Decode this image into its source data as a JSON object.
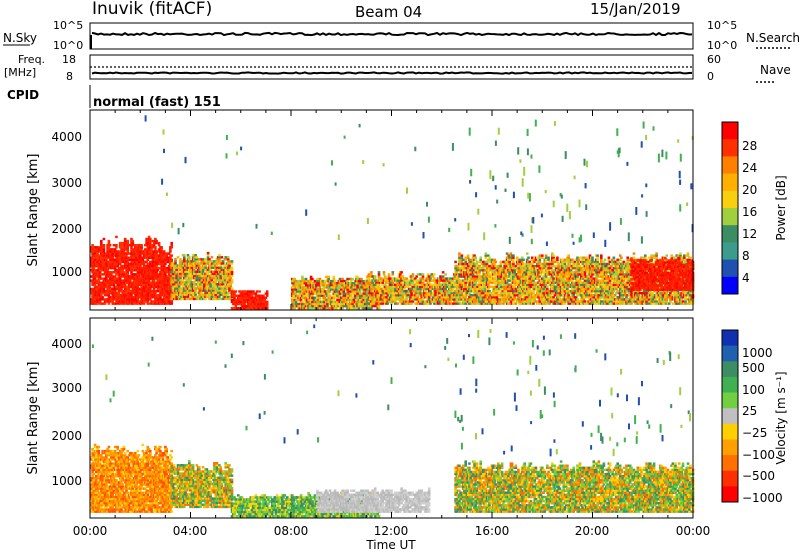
{
  "header": {
    "station": "Inuvik (fitACF)",
    "beam": "Beam 04",
    "date": "15/Jan/2019"
  },
  "top_panels": {
    "nsky_label": "N.Sky",
    "nsky_ticks": [
      "10^5",
      "10^0"
    ],
    "nsearch_label": "N.Search",
    "nsearch_ticks": [
      "10^5",
      "10^0"
    ],
    "freq_label": "Freq.",
    "freq_unit": "[MHz]",
    "freq_ticks": [
      "18",
      "8"
    ],
    "nave_label": "Nave",
    "nave_ticks": [
      "60",
      "0"
    ],
    "cpid_label": "CPID",
    "cpid_text": "normal (fast) 151"
  },
  "power_panel": {
    "ylabel": "Slant Range [km]",
    "yticks": [
      "4000",
      "3000",
      "2000",
      "1000"
    ],
    "colorbar_label": "Power [dB]",
    "colorbar_ticks": [
      "28",
      "24",
      "20",
      "16",
      "12",
      "8",
      "4"
    ],
    "colorbar_colors": [
      "#ff0000",
      "#ff3000",
      "#ff7f00",
      "#ffb000",
      "#f8d010",
      "#a0d040",
      "#3c8c64",
      "#3c9c8c",
      "#2050b0",
      "#0000ff"
    ]
  },
  "velocity_panel": {
    "ylabel": "Slant Range [km]",
    "yticks": [
      "4000",
      "3000",
      "2000",
      "1000"
    ],
    "colorbar_label": "Velocity  [m s⁻¹]",
    "colorbar_ticks": [
      "1000",
      "500",
      "100",
      "25",
      "−25",
      "−100",
      "−500",
      "−1000"
    ],
    "colorbar_colors": [
      "#1030b0",
      "#2060b0",
      "#3c8c64",
      "#40b050",
      "#70d040",
      "#c0c0c0",
      "#ffd000",
      "#ffa000",
      "#ff7000",
      "#ff3000",
      "#ff0000"
    ]
  },
  "xaxis": {
    "ticks": [
      "00:00",
      "04:00",
      "08:00",
      "12:00",
      "16:00",
      "20:00",
      "00:00"
    ],
    "label": "Time UT"
  },
  "chart_data": [
    {
      "type": "heatmap",
      "name": "power",
      "x_range_hours": [
        0,
        24
      ],
      "y_range_km": [
        180,
        4500
      ],
      "color_range_db": [
        0,
        30
      ],
      "regions": [
        {
          "t0": 0.0,
          "t1": 3.2,
          "r0": 300,
          "r1": 1750,
          "level": "high"
        },
        {
          "t0": 3.2,
          "t1": 5.6,
          "r0": 400,
          "r1": 1400,
          "level": "medium"
        },
        {
          "t0": 5.6,
          "t1": 7.0,
          "r0": 200,
          "r1": 600,
          "level": "high"
        },
        {
          "t0": 8.0,
          "t1": 11.5,
          "r0": 200,
          "r1": 900,
          "level": "medium"
        },
        {
          "t0": 11.0,
          "t1": 14.5,
          "r0": 300,
          "r1": 1000,
          "level": "medium"
        },
        {
          "t0": 14.5,
          "t1": 24.0,
          "r0": 300,
          "r1": 1400,
          "level": "medium"
        },
        {
          "t0": 21.5,
          "t1": 24.0,
          "r0": 600,
          "r1": 1300,
          "level": "high"
        }
      ]
    },
    {
      "type": "heatmap",
      "name": "velocity",
      "x_range_hours": [
        0,
        24
      ],
      "y_range_km": [
        180,
        4500
      ],
      "color_range_ms": [
        -1000,
        1000
      ],
      "regions": [
        {
          "t0": 0.0,
          "t1": 3.2,
          "r0": 300,
          "r1": 1750,
          "level": "negative"
        },
        {
          "t0": 3.2,
          "t1": 5.6,
          "r0": 400,
          "r1": 1400,
          "level": "mixed"
        },
        {
          "t0": 5.6,
          "t1": 11.5,
          "r0": 200,
          "r1": 700,
          "level": "positive"
        },
        {
          "t0": 9.0,
          "t1": 13.5,
          "r0": 300,
          "r1": 800,
          "level": "near-zero"
        },
        {
          "t0": 14.5,
          "t1": 24.0,
          "r0": 300,
          "r1": 1400,
          "level": "mixed"
        }
      ]
    }
  ]
}
